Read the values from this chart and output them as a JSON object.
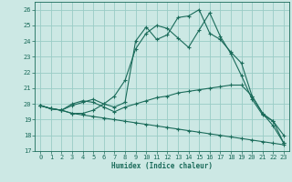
{
  "xlabel": "Humidex (Indice chaleur)",
  "xlim": [
    -0.5,
    23.5
  ],
  "ylim": [
    17,
    26.5
  ],
  "yticks": [
    17,
    18,
    19,
    20,
    21,
    22,
    23,
    24,
    25,
    26
  ],
  "xticks": [
    0,
    1,
    2,
    3,
    4,
    5,
    6,
    7,
    8,
    9,
    10,
    11,
    12,
    13,
    14,
    15,
    16,
    17,
    18,
    19,
    20,
    21,
    22,
    23
  ],
  "background_color": "#cce8e4",
  "grid_color": "#99ccc6",
  "line_color": "#1a6b5a",
  "series": {
    "curve1": [
      19.9,
      19.7,
      19.6,
      19.4,
      19.4,
      19.6,
      20.0,
      20.5,
      21.5,
      23.5,
      24.5,
      25.0,
      24.8,
      24.2,
      23.6,
      24.7,
      25.8,
      24.3,
      23.2,
      21.8,
      20.3,
      19.3,
      18.9,
      17.5
    ],
    "curve2": [
      19.9,
      19.7,
      19.6,
      20.0,
      20.2,
      20.1,
      19.8,
      19.5,
      19.8,
      20.0,
      20.2,
      20.4,
      20.5,
      20.7,
      20.8,
      20.9,
      21.0,
      21.1,
      21.2,
      21.2,
      20.5,
      19.4,
      18.6,
      17.5
    ],
    "curve3": [
      19.9,
      19.7,
      19.6,
      19.4,
      19.3,
      19.2,
      19.1,
      19.0,
      18.9,
      18.8,
      18.7,
      18.6,
      18.5,
      18.4,
      18.3,
      18.2,
      18.1,
      18.0,
      17.9,
      17.8,
      17.7,
      17.6,
      17.5,
      17.4
    ],
    "curve4": [
      19.9,
      19.7,
      19.6,
      19.9,
      20.1,
      20.3,
      20.0,
      19.8,
      20.1,
      24.0,
      24.9,
      24.1,
      24.4,
      25.5,
      25.6,
      26.0,
      24.5,
      24.1,
      23.3,
      22.6,
      20.5,
      19.4,
      18.9,
      18.0
    ]
  }
}
